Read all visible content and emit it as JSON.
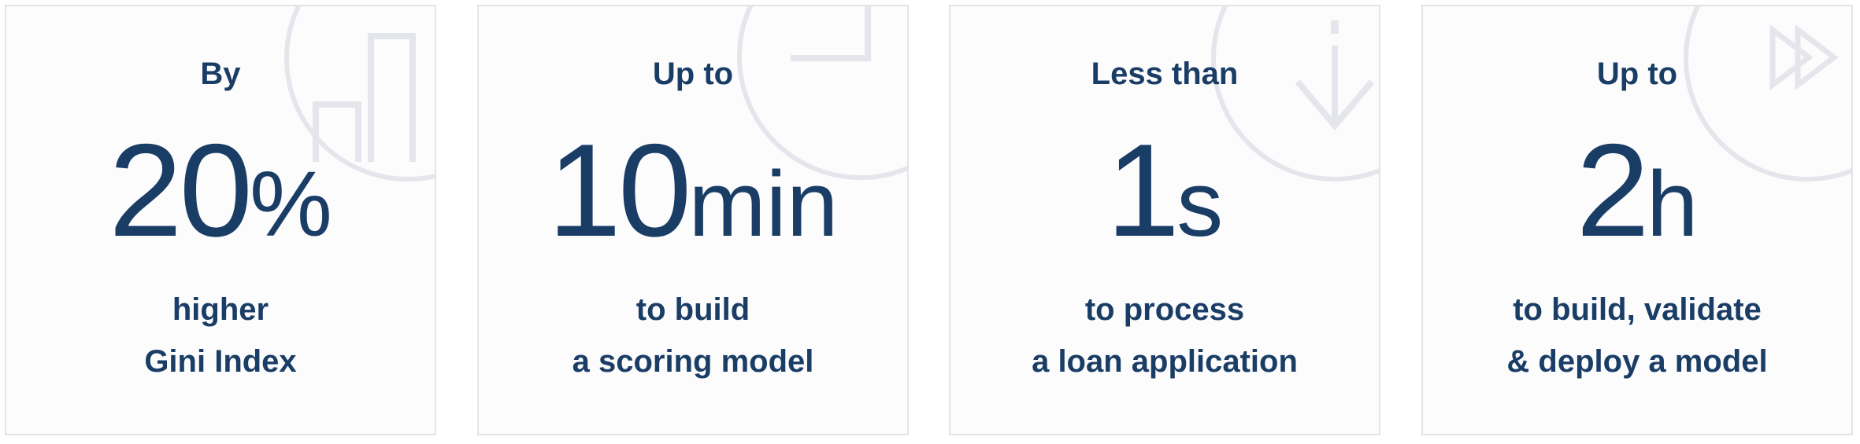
{
  "cards": [
    {
      "prefix": "By",
      "number": "20",
      "unit": "%",
      "line1": "higher",
      "line2": "Gini Index",
      "icon": "bar-chart-icon"
    },
    {
      "prefix": "Up to",
      "number": "10",
      "unit": "min",
      "line1": "to build",
      "line2": "a scoring model",
      "icon": "clock-icon"
    },
    {
      "prefix": "Less than",
      "number": "1",
      "unit": "s",
      "line1": "to process",
      "line2": "a loan application",
      "icon": "down-arrow-icon"
    },
    {
      "prefix": "Up to",
      "number": "2",
      "unit": "h",
      "line1": "to build, validate",
      "line2": "& deploy a model",
      "icon": "fast-forward-icon"
    }
  ],
  "colors": {
    "text": "#1a3d66",
    "card_border": "#e3e4ea",
    "card_bg": "#fcfcfd",
    "decoration": "#e4e6ec"
  }
}
